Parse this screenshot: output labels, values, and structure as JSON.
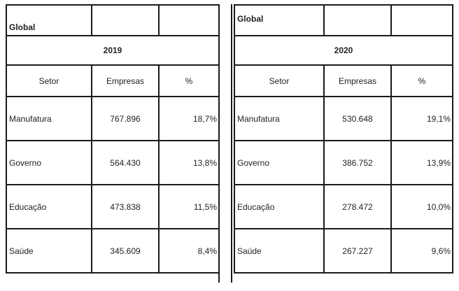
{
  "table_2019": {
    "title": "Global",
    "year": "2019",
    "headers": {
      "setor": "Setor",
      "empresas": "Empresas",
      "pct": "%"
    },
    "rows": [
      {
        "setor": "Manufatura",
        "empresas": "767.896",
        "pct": "18,7%"
      },
      {
        "setor": "Governo",
        "empresas": "564.430",
        "pct": "13,8%"
      },
      {
        "setor": "Educação",
        "empresas": "473.838",
        "pct": "11,5%"
      },
      {
        "setor": "Saúde",
        "empresas": "345.609",
        "pct": "8,4%"
      }
    ]
  },
  "table_2020": {
    "title": "Global",
    "year": "2020",
    "headers": {
      "setor": "Setor",
      "empresas": "Empresas",
      "pct": "%"
    },
    "rows": [
      {
        "setor": "Manufatura",
        "empresas": "530.648",
        "pct": "19,1%"
      },
      {
        "setor": "Governo",
        "empresas": "386.752",
        "pct": "13,9%"
      },
      {
        "setor": "Educação",
        "empresas": "278.472",
        "pct": "10,0%"
      },
      {
        "setor": "Saúde",
        "empresas": "267.227",
        "pct": "9,6%"
      }
    ]
  }
}
